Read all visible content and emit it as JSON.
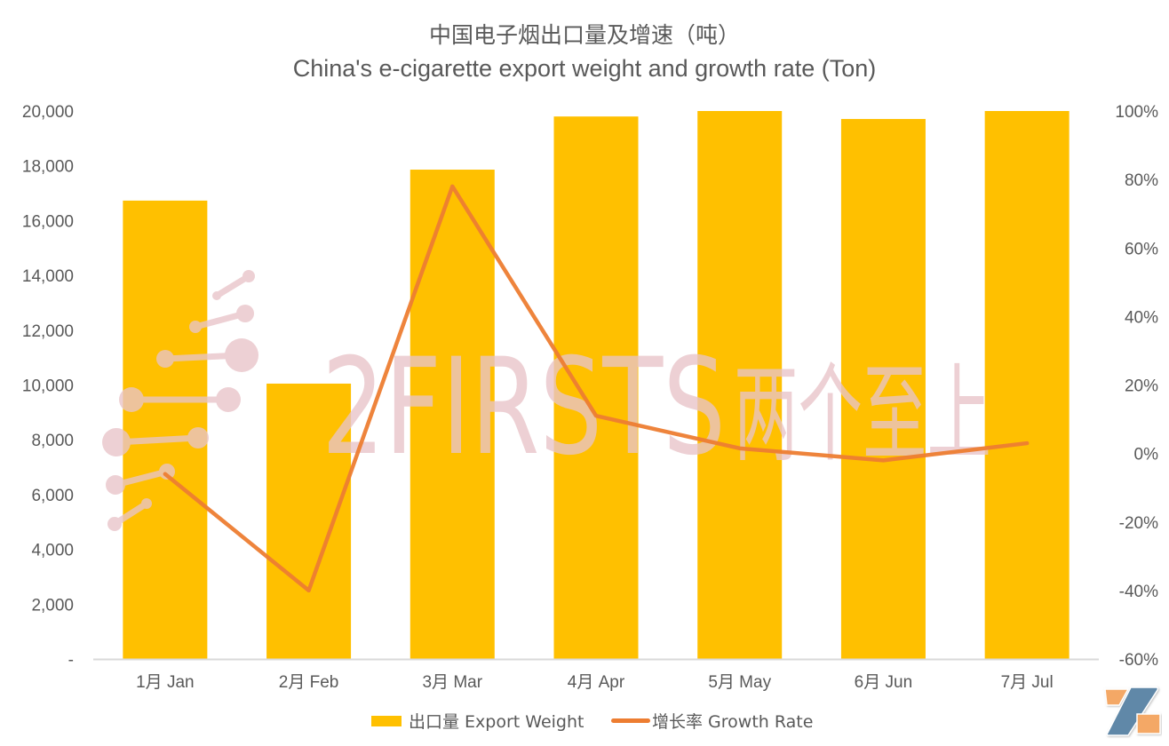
{
  "title": {
    "cn": "中国电子烟出口量及增速（吨）",
    "en": "China's e-cigarette export weight and growth rate (Ton)"
  },
  "colors": {
    "bar": "#FFC000",
    "line": "#ED7D31",
    "axis": "#D9D9D9",
    "text": "#595959",
    "watermark": "#E8C4C8",
    "logo_orange": "#F4A866",
    "logo_blue": "#6088A8"
  },
  "axes": {
    "left_ticks": [
      "-",
      "2,000",
      "4,000",
      "6,000",
      "8,000",
      "10,000",
      "12,000",
      "14,000",
      "16,000",
      "18,000",
      "20,000"
    ],
    "right_ticks": [
      "-60%",
      "-40%",
      "-20%",
      "0%",
      "20%",
      "40%",
      "60%",
      "80%",
      "100%"
    ]
  },
  "legend": {
    "bar_label": "出口量 Export Weight",
    "line_label": "增长率 Growth Rate"
  },
  "watermark": {
    "text_en": "2FIRSTS",
    "text_cn": "两个至上"
  },
  "logo": {
    "icon": "2firsts-z-logo-icon"
  },
  "chart_data": {
    "type": "bar",
    "title": "中国电子烟出口量及增速（吨） / China's e-cigarette export weight and growth rate (Ton)",
    "categories": [
      "1月 Jan",
      "2月 Feb",
      "3月 Mar",
      "4月 Apr",
      "5月 May",
      "6月 Jun",
      "7月 Jul"
    ],
    "series": [
      {
        "name": "出口量 Export Weight",
        "type": "bar",
        "axis": "left",
        "values": [
          16730,
          10050,
          17860,
          19800,
          20000,
          19710,
          20000
        ]
      },
      {
        "name": "增长率 Growth Rate",
        "type": "line",
        "axis": "right",
        "unit": "%",
        "values": [
          -6,
          -40,
          78,
          11,
          1.5,
          -2,
          3
        ]
      }
    ],
    "xlabel": "",
    "ylabel": "",
    "ylim": [
      0,
      20000
    ],
    "y2lim": [
      -60,
      100
    ],
    "grid": false,
    "legend_position": "bottom"
  }
}
